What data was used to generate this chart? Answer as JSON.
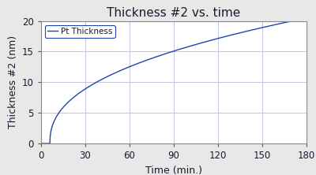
{
  "title": "Thickness #2 vs. time",
  "xlabel": "Time (min.)",
  "ylabel": "Thickness #2 (nm)",
  "xlim": [
    0,
    180
  ],
  "ylim": [
    0,
    20
  ],
  "xticks": [
    0,
    30,
    60,
    90,
    120,
    150,
    180
  ],
  "yticks": [
    0,
    5,
    10,
    15,
    20
  ],
  "legend_label": "Pt Thickness",
  "line_color": "#2244aa",
  "background_color": "#e8e8e8",
  "plot_bg_color": "#ffffff",
  "grid_color": "#bbbbdd",
  "t_start": 6.0,
  "t_end": 155.0,
  "thickness_end": 19.2,
  "power": 0.42,
  "title_fontsize": 11,
  "label_fontsize": 9,
  "tick_fontsize": 8.5
}
